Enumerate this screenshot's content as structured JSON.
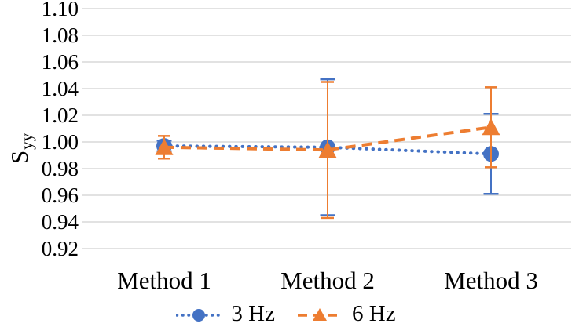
{
  "chart_data": {
    "type": "line",
    "title": "",
    "ylabel_main": "S",
    "ylabel_sub": "yy",
    "xlabel": "",
    "categories": [
      "Method 1",
      "Method 2",
      "Method 3"
    ],
    "ylim": [
      0.92,
      1.1
    ],
    "yticks": [
      1.1,
      1.08,
      1.06,
      1.04,
      1.02,
      1.0,
      0.98,
      0.96,
      0.94,
      0.92
    ],
    "ytick_decimals": 2,
    "grid": "horizontal-only",
    "gridline_color": "#D9D9D9",
    "text_color": "#000000",
    "legend_position": "bottom",
    "series": [
      {
        "name": "3 Hz",
        "color": "#4472C4",
        "marker": "circle",
        "line_style": "dotted",
        "values": [
          0.997,
          0.996,
          0.991
        ],
        "error_plus": [
          0.004,
          0.051,
          0.03
        ],
        "error_minus": [
          0.004,
          0.051,
          0.03
        ]
      },
      {
        "name": "6 Hz",
        "color": "#ED7D31",
        "marker": "triangle",
        "line_style": "dashed",
        "values": [
          0.996,
          0.994,
          1.011
        ],
        "error_plus": [
          0.0085,
          0.051,
          0.03
        ],
        "error_minus": [
          0.0085,
          0.051,
          0.03
        ]
      }
    ]
  }
}
